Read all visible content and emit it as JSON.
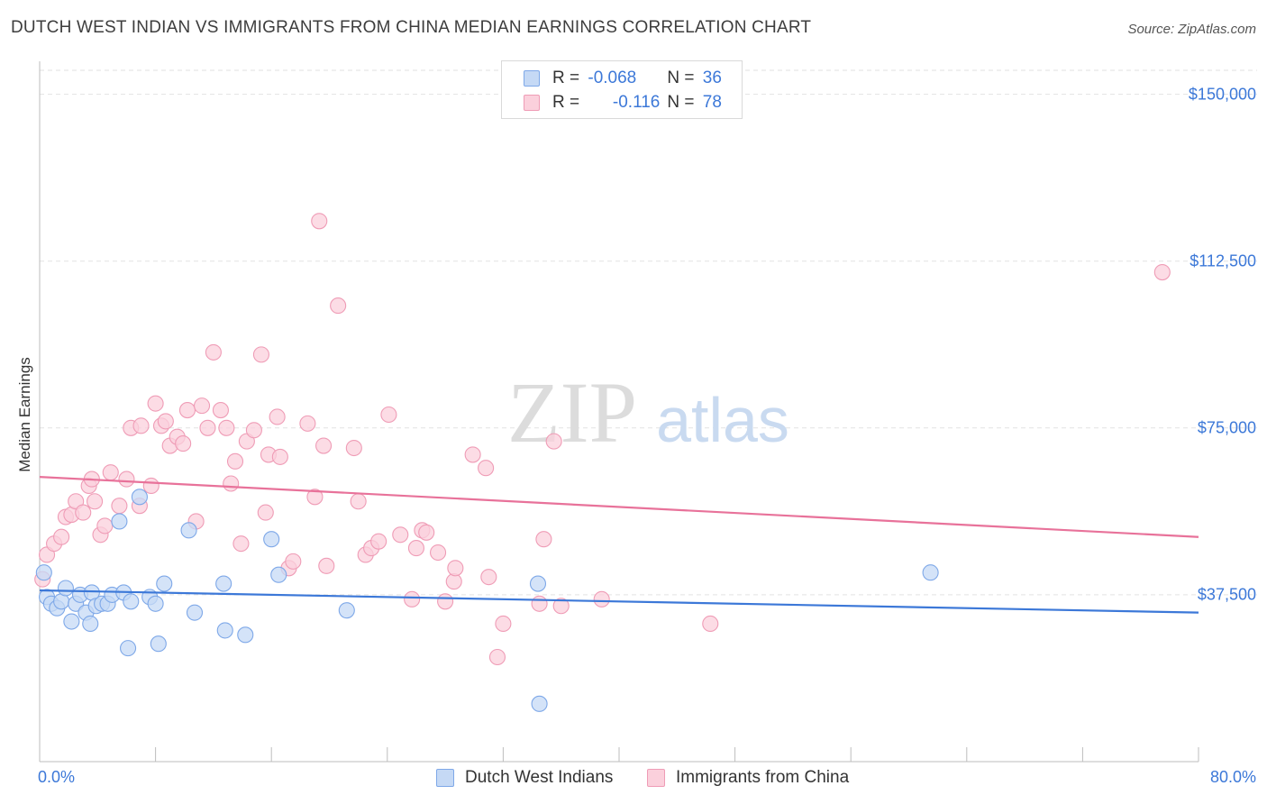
{
  "title": "DUTCH WEST INDIAN VS IMMIGRANTS FROM CHINA MEDIAN EARNINGS CORRELATION CHART",
  "source": "Source: ZipAtlas.com",
  "watermark": {
    "zip": "ZIP",
    "atlas": "atlas"
  },
  "legend": {
    "blue": {
      "r_label": "R = ",
      "r_value": "-0.068",
      "n_label": "N = ",
      "n_value": "36"
    },
    "pink": {
      "r_label": "R = ",
      "r_value": "-0.116",
      "n_label": "N = ",
      "n_value": "78"
    }
  },
  "bottom_legend": {
    "blue": "Dutch West Indians",
    "pink": "Immigrants from China"
  },
  "colors": {
    "blue": "#3c78d8",
    "pink": "#e8729a",
    "blue_fill": "#c5d9f5",
    "pink_fill": "#fbd0dc"
  },
  "chart_data": {
    "type": "scatter",
    "title": "DUTCH WEST INDIAN VS IMMIGRANTS FROM CHINA MEDIAN EARNINGS CORRELATION CHART",
    "xlabel": "",
    "ylabel": "Median Earnings",
    "xlim": [
      0,
      80
    ],
    "ylim": [
      0,
      156000
    ],
    "x_tick_labels": [
      "0.0%",
      "80.0%"
    ],
    "y_ticks": [
      37500,
      75000,
      112500,
      150000
    ],
    "y_tick_labels": [
      "$37,500",
      "$75,000",
      "$112,500",
      "$150,000"
    ],
    "series": [
      {
        "name": "Dutch West Indians",
        "color": "#3c78d8",
        "trend": {
          "x": [
            0,
            80
          ],
          "y": [
            38500,
            33500
          ]
        },
        "points": [
          [
            0.3,
            42500
          ],
          [
            0.5,
            37000
          ],
          [
            0.8,
            35500
          ],
          [
            1.2,
            34500
          ],
          [
            1.5,
            36000
          ],
          [
            1.8,
            39000
          ],
          [
            2.2,
            31500
          ],
          [
            2.5,
            35500
          ],
          [
            2.8,
            37500
          ],
          [
            3.2,
            33500
          ],
          [
            3.5,
            31000
          ],
          [
            3.6,
            38000
          ],
          [
            3.9,
            35000
          ],
          [
            4.3,
            35500
          ],
          [
            4.7,
            35500
          ],
          [
            5.0,
            37500
          ],
          [
            5.5,
            54000
          ],
          [
            5.8,
            38000
          ],
          [
            6.1,
            25500
          ],
          [
            6.3,
            36000
          ],
          [
            6.9,
            59500
          ],
          [
            7.6,
            37000
          ],
          [
            8.0,
            35500
          ],
          [
            8.2,
            26500
          ],
          [
            8.6,
            40000
          ],
          [
            10.3,
            52000
          ],
          [
            10.7,
            33500
          ],
          [
            12.7,
            40000
          ],
          [
            12.8,
            29500
          ],
          [
            14.2,
            28500
          ],
          [
            16.5,
            42000
          ],
          [
            16.0,
            50000
          ],
          [
            21.2,
            34000
          ],
          [
            34.4,
            40000
          ],
          [
            34.5,
            13000
          ],
          [
            61.5,
            42500
          ]
        ]
      },
      {
        "name": "Immigrants from China",
        "color": "#e8729a",
        "trend": {
          "x": [
            0,
            80
          ],
          "y": [
            64000,
            50500
          ]
        },
        "points": [
          [
            0.2,
            41000
          ],
          [
            0.5,
            46500
          ],
          [
            1.0,
            49000
          ],
          [
            1.5,
            50500
          ],
          [
            1.8,
            55000
          ],
          [
            2.2,
            55500
          ],
          [
            2.5,
            58500
          ],
          [
            3.0,
            56000
          ],
          [
            3.4,
            62000
          ],
          [
            3.6,
            63500
          ],
          [
            3.8,
            58500
          ],
          [
            4.2,
            51000
          ],
          [
            4.5,
            53000
          ],
          [
            4.9,
            65000
          ],
          [
            5.5,
            57500
          ],
          [
            6.0,
            63500
          ],
          [
            6.3,
            75000
          ],
          [
            6.9,
            57500
          ],
          [
            7.0,
            75500
          ],
          [
            7.7,
            62000
          ],
          [
            8.0,
            80500
          ],
          [
            8.4,
            75500
          ],
          [
            8.7,
            76500
          ],
          [
            9.0,
            71000
          ],
          [
            9.5,
            73000
          ],
          [
            9.9,
            71500
          ],
          [
            10.2,
            79000
          ],
          [
            10.8,
            54000
          ],
          [
            11.2,
            80000
          ],
          [
            11.6,
            75000
          ],
          [
            12.0,
            92000
          ],
          [
            12.5,
            79000
          ],
          [
            12.9,
            75000
          ],
          [
            13.2,
            62500
          ],
          [
            13.5,
            67500
          ],
          [
            13.9,
            49000
          ],
          [
            14.3,
            72000
          ],
          [
            14.8,
            74500
          ],
          [
            15.3,
            91500
          ],
          [
            15.6,
            56000
          ],
          [
            15.8,
            69000
          ],
          [
            16.4,
            77500
          ],
          [
            16.6,
            68500
          ],
          [
            17.2,
            43500
          ],
          [
            17.5,
            45000
          ],
          [
            18.5,
            76000
          ],
          [
            19.0,
            59500
          ],
          [
            19.3,
            121500
          ],
          [
            19.6,
            71000
          ],
          [
            19.8,
            44000
          ],
          [
            20.6,
            102500
          ],
          [
            21.7,
            70500
          ],
          [
            22.0,
            58500
          ],
          [
            22.5,
            46500
          ],
          [
            22.9,
            48000
          ],
          [
            23.4,
            49500
          ],
          [
            24.1,
            78000
          ],
          [
            24.9,
            51000
          ],
          [
            25.7,
            36500
          ],
          [
            26.0,
            48000
          ],
          [
            26.4,
            52000
          ],
          [
            26.7,
            51500
          ],
          [
            27.5,
            47000
          ],
          [
            28.0,
            36000
          ],
          [
            28.6,
            40500
          ],
          [
            28.7,
            43500
          ],
          [
            29.9,
            69000
          ],
          [
            30.8,
            66000
          ],
          [
            31.0,
            41500
          ],
          [
            31.6,
            23500
          ],
          [
            32.0,
            31000
          ],
          [
            34.5,
            35500
          ],
          [
            34.8,
            50000
          ],
          [
            35.5,
            72000
          ],
          [
            36.0,
            35000
          ],
          [
            38.8,
            36500
          ],
          [
            46.3,
            31000
          ],
          [
            77.5,
            110000
          ]
        ]
      }
    ]
  }
}
